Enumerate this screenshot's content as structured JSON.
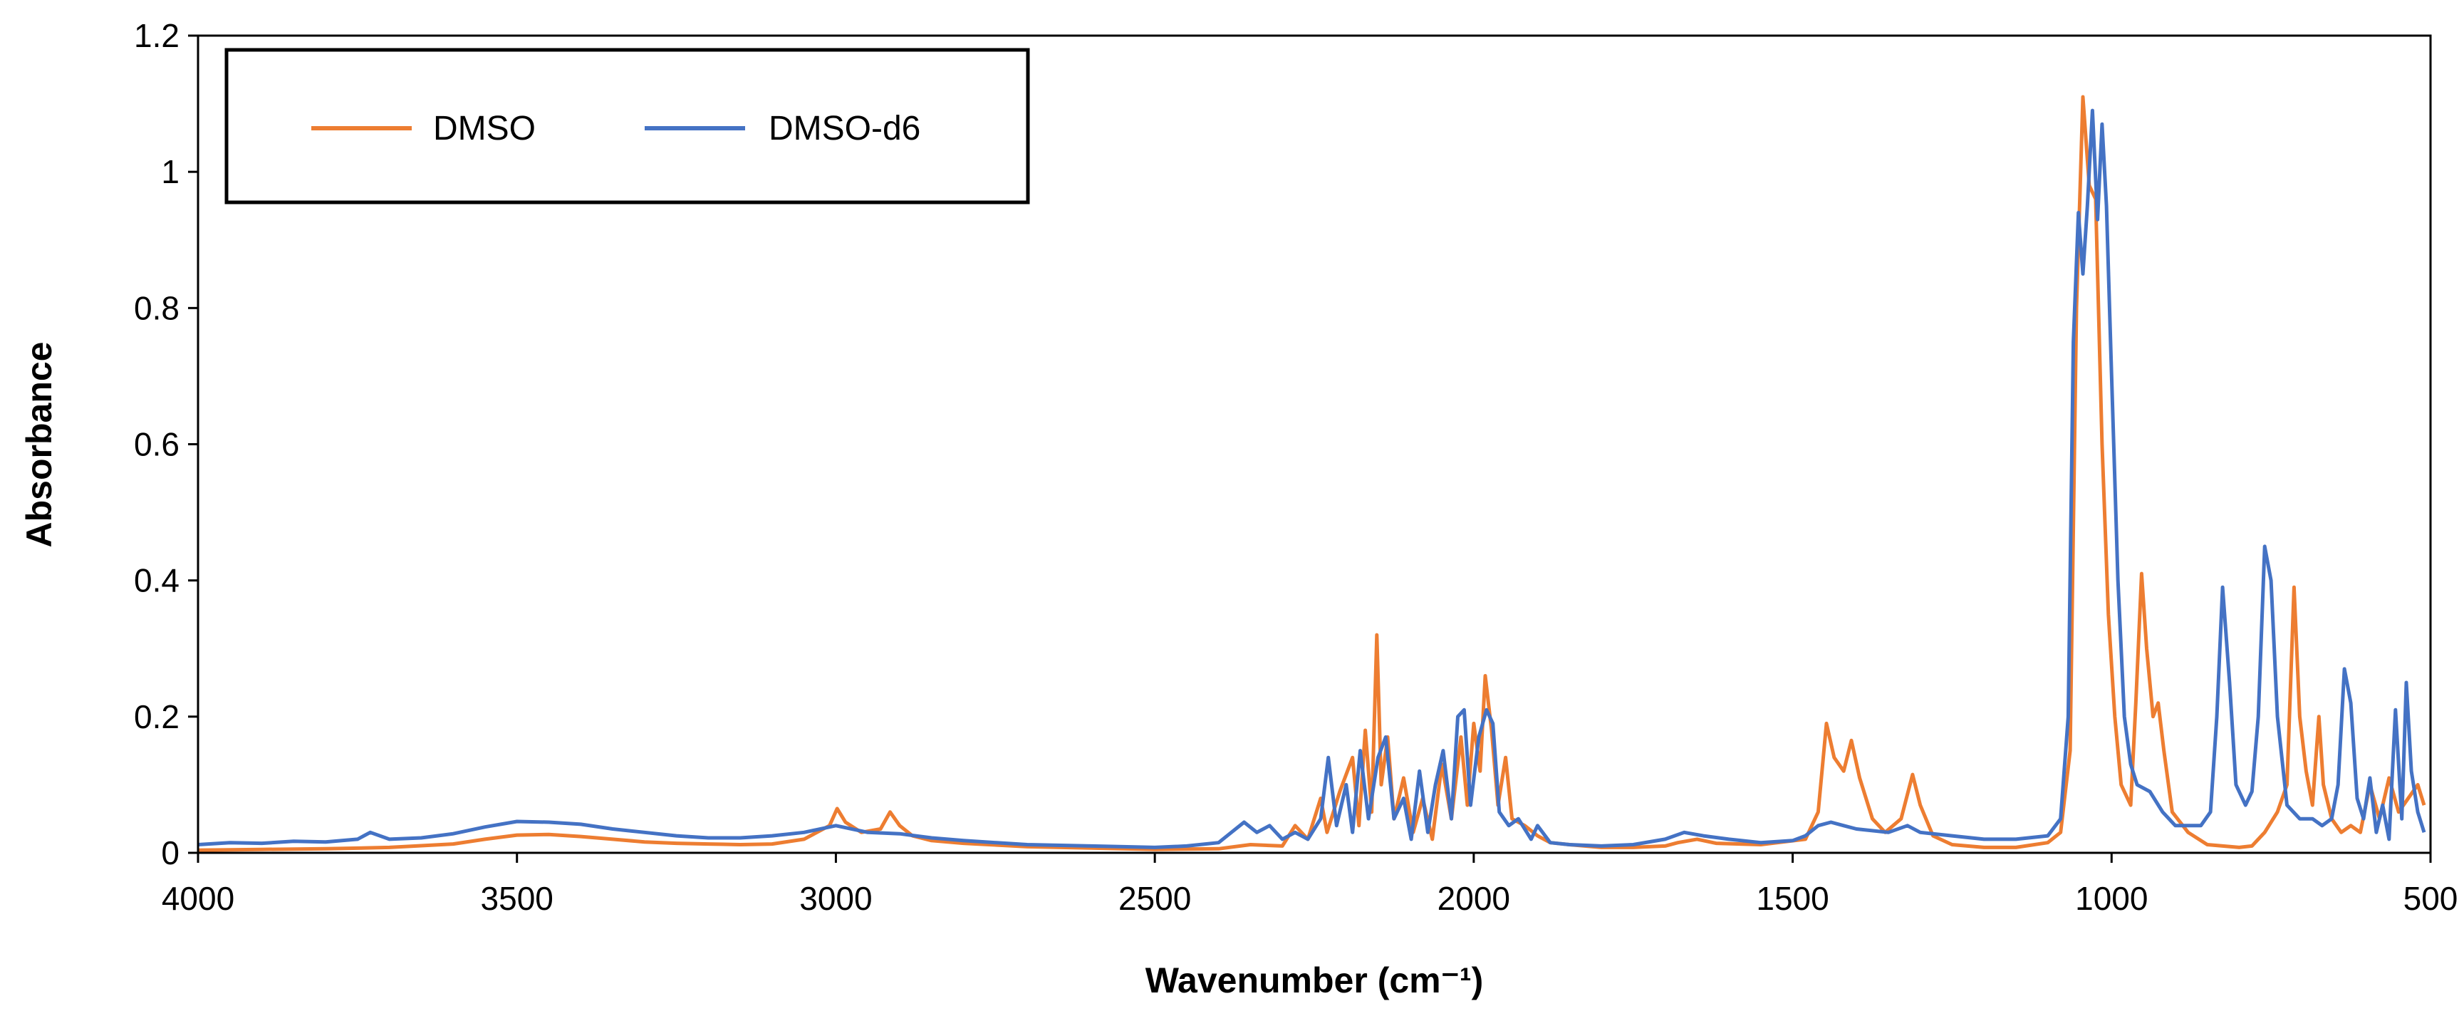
{
  "chart_data": {
    "type": "line",
    "title": "",
    "xlabel": "Wavenumber (cm⁻¹)",
    "ylabel": "Absorbance",
    "xlim": [
      4000,
      500
    ],
    "ylim": [
      0,
      1.2
    ],
    "x_reversed": true,
    "x_ticks": [
      "4000",
      "3500",
      "3000",
      "2500",
      "2000",
      "1500",
      "1000",
      "500"
    ],
    "y_ticks": [
      "0",
      "0.2",
      "0.4",
      "0.6",
      "0.8",
      "1",
      "1.2"
    ],
    "grid": false,
    "legend_position": "top-left",
    "series": [
      {
        "name": "DMSO",
        "color": "#ED7D31",
        "points": [
          [
            4000,
            0.004
          ],
          [
            3900,
            0.005
          ],
          [
            3800,
            0.006
          ],
          [
            3700,
            0.008
          ],
          [
            3600,
            0.013
          ],
          [
            3550,
            0.02
          ],
          [
            3500,
            0.026
          ],
          [
            3450,
            0.027
          ],
          [
            3400,
            0.024
          ],
          [
            3350,
            0.02
          ],
          [
            3300,
            0.016
          ],
          [
            3250,
            0.014
          ],
          [
            3200,
            0.013
          ],
          [
            3150,
            0.012
          ],
          [
            3100,
            0.013
          ],
          [
            3050,
            0.02
          ],
          [
            3010,
            0.04
          ],
          [
            2998,
            0.065
          ],
          [
            2985,
            0.045
          ],
          [
            2960,
            0.03
          ],
          [
            2930,
            0.035
          ],
          [
            2915,
            0.06
          ],
          [
            2900,
            0.04
          ],
          [
            2880,
            0.025
          ],
          [
            2850,
            0.018
          ],
          [
            2800,
            0.014
          ],
          [
            2700,
            0.009
          ],
          [
            2600,
            0.007
          ],
          [
            2500,
            0.005
          ],
          [
            2400,
            0.006
          ],
          [
            2350,
            0.012
          ],
          [
            2300,
            0.01
          ],
          [
            2280,
            0.04
          ],
          [
            2260,
            0.02
          ],
          [
            2240,
            0.08
          ],
          [
            2230,
            0.03
          ],
          [
            2210,
            0.09
          ],
          [
            2190,
            0.14
          ],
          [
            2180,
            0.04
          ],
          [
            2170,
            0.18
          ],
          [
            2160,
            0.06
          ],
          [
            2152,
            0.32
          ],
          [
            2145,
            0.1
          ],
          [
            2135,
            0.17
          ],
          [
            2125,
            0.05
          ],
          [
            2110,
            0.11
          ],
          [
            2095,
            0.03
          ],
          [
            2080,
            0.08
          ],
          [
            2065,
            0.02
          ],
          [
            2050,
            0.13
          ],
          [
            2035,
            0.05
          ],
          [
            2020,
            0.17
          ],
          [
            2010,
            0.07
          ],
          [
            2000,
            0.19
          ],
          [
            1990,
            0.12
          ],
          [
            1982,
            0.26
          ],
          [
            1972,
            0.18
          ],
          [
            1962,
            0.07
          ],
          [
            1950,
            0.14
          ],
          [
            1940,
            0.05
          ],
          [
            1920,
            0.04
          ],
          [
            1900,
            0.025
          ],
          [
            1880,
            0.015
          ],
          [
            1850,
            0.012
          ],
          [
            1800,
            0.008
          ],
          [
            1750,
            0.008
          ],
          [
            1700,
            0.01
          ],
          [
            1680,
            0.015
          ],
          [
            1650,
            0.02
          ],
          [
            1620,
            0.014
          ],
          [
            1550,
            0.012
          ],
          [
            1480,
            0.02
          ],
          [
            1460,
            0.06
          ],
          [
            1447,
            0.19
          ],
          [
            1435,
            0.14
          ],
          [
            1420,
            0.12
          ],
          [
            1408,
            0.165
          ],
          [
            1395,
            0.11
          ],
          [
            1375,
            0.05
          ],
          [
            1355,
            0.03
          ],
          [
            1330,
            0.05
          ],
          [
            1312,
            0.115
          ],
          [
            1300,
            0.07
          ],
          [
            1280,
            0.025
          ],
          [
            1250,
            0.012
          ],
          [
            1200,
            0.008
          ],
          [
            1150,
            0.008
          ],
          [
            1100,
            0.015
          ],
          [
            1080,
            0.03
          ],
          [
            1065,
            0.15
          ],
          [
            1055,
            0.8
          ],
          [
            1045,
            1.11
          ],
          [
            1035,
            0.98
          ],
          [
            1025,
            0.96
          ],
          [
            1015,
            0.6
          ],
          [
            1005,
            0.35
          ],
          [
            995,
            0.2
          ],
          [
            985,
            0.1
          ],
          [
            970,
            0.07
          ],
          [
            962,
            0.22
          ],
          [
            953,
            0.41
          ],
          [
            945,
            0.3
          ],
          [
            935,
            0.2
          ],
          [
            927,
            0.22
          ],
          [
            918,
            0.15
          ],
          [
            905,
            0.06
          ],
          [
            880,
            0.03
          ],
          [
            850,
            0.012
          ],
          [
            800,
            0.008
          ],
          [
            780,
            0.01
          ],
          [
            760,
            0.03
          ],
          [
            740,
            0.06
          ],
          [
            725,
            0.1
          ],
          [
            714,
            0.39
          ],
          [
            705,
            0.2
          ],
          [
            695,
            0.12
          ],
          [
            685,
            0.07
          ],
          [
            675,
            0.2
          ],
          [
            668,
            0.1
          ],
          [
            655,
            0.05
          ],
          [
            640,
            0.03
          ],
          [
            625,
            0.04
          ],
          [
            610,
            0.03
          ],
          [
            595,
            0.1
          ],
          [
            580,
            0.05
          ],
          [
            565,
            0.11
          ],
          [
            550,
            0.06
          ],
          [
            535,
            0.08
          ],
          [
            520,
            0.1
          ],
          [
            510,
            0.07
          ]
        ]
      },
      {
        "name": "DMSO-d6",
        "color": "#4472C4",
        "points": [
          [
            4000,
            0.012
          ],
          [
            3950,
            0.015
          ],
          [
            3900,
            0.014
          ],
          [
            3850,
            0.017
          ],
          [
            3800,
            0.016
          ],
          [
            3750,
            0.02
          ],
          [
            3730,
            0.03
          ],
          [
            3700,
            0.02
          ],
          [
            3650,
            0.022
          ],
          [
            3600,
            0.028
          ],
          [
            3550,
            0.038
          ],
          [
            3500,
            0.046
          ],
          [
            3450,
            0.045
          ],
          [
            3400,
            0.042
          ],
          [
            3350,
            0.035
          ],
          [
            3300,
            0.03
          ],
          [
            3250,
            0.025
          ],
          [
            3200,
            0.022
          ],
          [
            3150,
            0.022
          ],
          [
            3100,
            0.025
          ],
          [
            3050,
            0.03
          ],
          [
            3000,
            0.04
          ],
          [
            2950,
            0.03
          ],
          [
            2900,
            0.028
          ],
          [
            2850,
            0.022
          ],
          [
            2800,
            0.018
          ],
          [
            2700,
            0.012
          ],
          [
            2600,
            0.01
          ],
          [
            2500,
            0.008
          ],
          [
            2450,
            0.01
          ],
          [
            2400,
            0.015
          ],
          [
            2380,
            0.03
          ],
          [
            2360,
            0.045
          ],
          [
            2340,
            0.03
          ],
          [
            2320,
            0.04
          ],
          [
            2300,
            0.02
          ],
          [
            2280,
            0.03
          ],
          [
            2260,
            0.02
          ],
          [
            2240,
            0.05
          ],
          [
            2228,
            0.14
          ],
          [
            2215,
            0.04
          ],
          [
            2200,
            0.1
          ],
          [
            2190,
            0.03
          ],
          [
            2178,
            0.15
          ],
          [
            2165,
            0.05
          ],
          [
            2150,
            0.14
          ],
          [
            2138,
            0.17
          ],
          [
            2125,
            0.05
          ],
          [
            2110,
            0.08
          ],
          [
            2098,
            0.02
          ],
          [
            2085,
            0.12
          ],
          [
            2072,
            0.03
          ],
          [
            2060,
            0.1
          ],
          [
            2048,
            0.15
          ],
          [
            2035,
            0.05
          ],
          [
            2025,
            0.2
          ],
          [
            2015,
            0.21
          ],
          [
            2005,
            0.07
          ],
          [
            1992,
            0.17
          ],
          [
            1980,
            0.21
          ],
          [
            1970,
            0.19
          ],
          [
            1960,
            0.06
          ],
          [
            1945,
            0.04
          ],
          [
            1930,
            0.05
          ],
          [
            1910,
            0.02
          ],
          [
            1900,
            0.04
          ],
          [
            1880,
            0.015
          ],
          [
            1850,
            0.012
          ],
          [
            1800,
            0.01
          ],
          [
            1750,
            0.012
          ],
          [
            1700,
            0.02
          ],
          [
            1670,
            0.03
          ],
          [
            1640,
            0.025
          ],
          [
            1600,
            0.02
          ],
          [
            1550,
            0.015
          ],
          [
            1500,
            0.018
          ],
          [
            1480,
            0.025
          ],
          [
            1460,
            0.04
          ],
          [
            1440,
            0.045
          ],
          [
            1420,
            0.04
          ],
          [
            1400,
            0.035
          ],
          [
            1350,
            0.03
          ],
          [
            1320,
            0.04
          ],
          [
            1300,
            0.03
          ],
          [
            1250,
            0.025
          ],
          [
            1200,
            0.02
          ],
          [
            1150,
            0.02
          ],
          [
            1100,
            0.025
          ],
          [
            1080,
            0.05
          ],
          [
            1068,
            0.2
          ],
          [
            1060,
            0.75
          ],
          [
            1052,
            0.94
          ],
          [
            1045,
            0.85
          ],
          [
            1038,
            0.95
          ],
          [
            1030,
            1.09
          ],
          [
            1022,
            0.93
          ],
          [
            1015,
            1.07
          ],
          [
            1008,
            0.95
          ],
          [
            1000,
            0.7
          ],
          [
            990,
            0.4
          ],
          [
            980,
            0.2
          ],
          [
            970,
            0.13
          ],
          [
            960,
            0.1
          ],
          [
            940,
            0.09
          ],
          [
            920,
            0.06
          ],
          [
            900,
            0.04
          ],
          [
            880,
            0.04
          ],
          [
            860,
            0.04
          ],
          [
            845,
            0.06
          ],
          [
            835,
            0.2
          ],
          [
            826,
            0.39
          ],
          [
            815,
            0.25
          ],
          [
            805,
            0.1
          ],
          [
            790,
            0.07
          ],
          [
            780,
            0.09
          ],
          [
            770,
            0.2
          ],
          [
            760,
            0.45
          ],
          [
            750,
            0.4
          ],
          [
            740,
            0.2
          ],
          [
            725,
            0.07
          ],
          [
            705,
            0.05
          ],
          [
            685,
            0.05
          ],
          [
            670,
            0.04
          ],
          [
            655,
            0.05
          ],
          [
            645,
            0.1
          ],
          [
            635,
            0.27
          ],
          [
            625,
            0.22
          ],
          [
            615,
            0.08
          ],
          [
            605,
            0.05
          ],
          [
            595,
            0.11
          ],
          [
            585,
            0.03
          ],
          [
            575,
            0.07
          ],
          [
            565,
            0.02
          ],
          [
            555,
            0.21
          ],
          [
            545,
            0.05
          ],
          [
            538,
            0.25
          ],
          [
            530,
            0.12
          ],
          [
            520,
            0.06
          ],
          [
            510,
            0.03
          ]
        ]
      }
    ]
  }
}
